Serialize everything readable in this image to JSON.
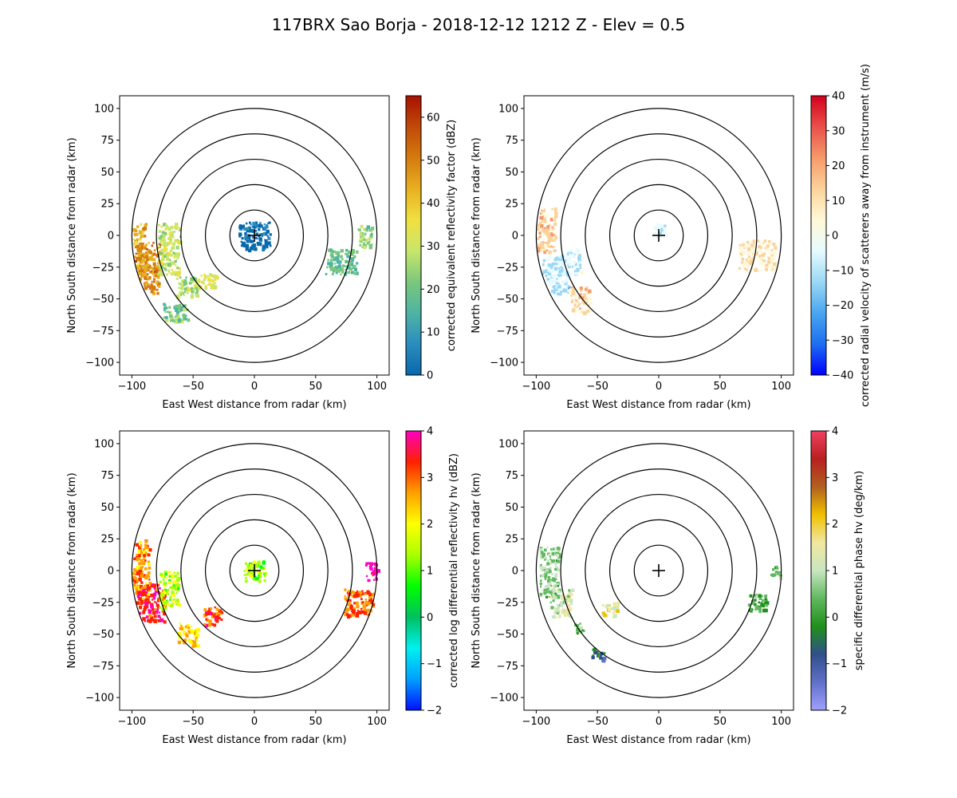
{
  "figure": {
    "title": "117BRX Sao Borja - 2018-12-12 1212 Z -  Elev = 0.5"
  },
  "chart_data": [
    {
      "type": "heatmap",
      "id": "reflectivity",
      "xlabel": "East West distance from radar (km)",
      "ylabel": "North South distance from radar (km)",
      "xlim": [
        -110,
        110
      ],
      "ylim": [
        -110,
        110
      ],
      "x_ticks": [
        -100,
        -50,
        0,
        50,
        100
      ],
      "y_ticks": [
        -100,
        -75,
        -50,
        -25,
        0,
        25,
        50,
        75,
        100
      ],
      "range_rings_km": [
        20,
        40,
        60,
        80,
        100
      ],
      "colorbar": {
        "label": "corrected equivalent reflectivity factor (dBZ)",
        "vmin": 0,
        "vmax": 65,
        "ticks": [
          0,
          10,
          20,
          30,
          40,
          50,
          60
        ],
        "colors": [
          "#0868ac",
          "#2b8cbe",
          "#4eb3a3",
          "#7bc87c",
          "#c8e66a",
          "#f0e040",
          "#e8b020",
          "#d57a10",
          "#c04a08",
          "#a81000"
        ]
      },
      "echo_regions": [
        {
          "x": -98,
          "y": -20,
          "w": 18,
          "h": 60,
          "value": 42
        },
        {
          "x": -88,
          "y": -25,
          "w": 20,
          "h": 40,
          "value": 47
        },
        {
          "x": -70,
          "y": -10,
          "w": 18,
          "h": 40,
          "value": 30
        },
        {
          "x": -55,
          "y": -40,
          "w": 18,
          "h": 16,
          "value": 27
        },
        {
          "x": -40,
          "y": -35,
          "w": 18,
          "h": 12,
          "value": 32
        },
        {
          "x": -65,
          "y": -60,
          "w": 20,
          "h": 14,
          "value": 22
        },
        {
          "x": 70,
          "y": -20,
          "w": 26,
          "h": 20,
          "value": 20
        },
        {
          "x": 90,
          "y": 0,
          "w": 12,
          "h": 18,
          "value": 25
        },
        {
          "x": 0,
          "y": 0,
          "w": 26,
          "h": 22,
          "value": 3
        }
      ]
    },
    {
      "type": "heatmap",
      "id": "velocity",
      "xlabel": "East West distance from radar (km)",
      "ylabel": "North South distance from radar (km)",
      "xlim": [
        -110,
        110
      ],
      "ylim": [
        -110,
        110
      ],
      "x_ticks": [
        -100,
        -50,
        0,
        50,
        100
      ],
      "y_ticks": [
        -100,
        -75,
        -50,
        -25,
        0,
        25,
        50,
        75,
        100
      ],
      "range_rings_km": [
        20,
        40,
        60,
        80,
        100
      ],
      "colorbar": {
        "label": "corrected radial velocity of scatterers away from instrument (m/s)",
        "vmin": -40,
        "vmax": 40,
        "ticks": [
          -40,
          -30,
          -20,
          -10,
          0,
          10,
          20,
          30,
          40
        ],
        "colors": [
          "#0000ff",
          "#1e6ef0",
          "#4aa6f0",
          "#9ad8f5",
          "#e6fbff",
          "#fff8d8",
          "#fbd39a",
          "#f59a6a",
          "#e8504a",
          "#d4001c"
        ]
      },
      "echo_regions": [
        {
          "x": -95,
          "y": 5,
          "w": 20,
          "h": 35,
          "value": 12
        },
        {
          "x": -85,
          "y": -30,
          "w": 22,
          "h": 30,
          "value": -9
        },
        {
          "x": -65,
          "y": -50,
          "w": 18,
          "h": 20,
          "value": 10
        },
        {
          "x": -70,
          "y": -20,
          "w": 14,
          "h": 20,
          "value": -6
        },
        {
          "x": 80,
          "y": -15,
          "w": 30,
          "h": 24,
          "value": 7
        },
        {
          "x": 0,
          "y": 5,
          "w": 10,
          "h": 10,
          "value": -5
        }
      ]
    },
    {
      "type": "heatmap",
      "id": "zdr",
      "xlabel": "East West distance from radar (km)",
      "ylabel": "North South distance from radar (km)",
      "xlim": [
        -110,
        110
      ],
      "ylim": [
        -110,
        110
      ],
      "x_ticks": [
        -100,
        -50,
        0,
        50,
        100
      ],
      "y_ticks": [
        -100,
        -75,
        -50,
        -25,
        0,
        25,
        50,
        75,
        100
      ],
      "range_rings_km": [
        20,
        40,
        60,
        80,
        100
      ],
      "colorbar": {
        "label": "corrected log differential reflectivity hv (dBZ)",
        "vmin": -2,
        "vmax": 4,
        "ticks": [
          -2,
          -1,
          0,
          1,
          2,
          3,
          4
        ],
        "colors": [
          "#0010ff",
          "#00a0ff",
          "#00f0f0",
          "#00c060",
          "#00ff00",
          "#aaff00",
          "#ffff00",
          "#ffa000",
          "#ff2000",
          "#ff00c0"
        ]
      },
      "echo_regions": [
        {
          "x": -95,
          "y": 0,
          "w": 18,
          "h": 50,
          "value": 2.6
        },
        {
          "x": -85,
          "y": -25,
          "w": 22,
          "h": 30,
          "value": 3.2
        },
        {
          "x": -70,
          "y": -15,
          "w": 16,
          "h": 30,
          "value": 1.4
        },
        {
          "x": -55,
          "y": -50,
          "w": 16,
          "h": 18,
          "value": 2.2
        },
        {
          "x": -35,
          "y": -35,
          "w": 16,
          "h": 14,
          "value": 3.0
        },
        {
          "x": 85,
          "y": -25,
          "w": 24,
          "h": 22,
          "value": 2.8
        },
        {
          "x": 95,
          "y": 0,
          "w": 10,
          "h": 14,
          "value": 3.8
        },
        {
          "x": 0,
          "y": 0,
          "w": 18,
          "h": 16,
          "value": 1.2
        }
      ]
    },
    {
      "type": "heatmap",
      "id": "kdp",
      "xlabel": "East West distance from radar (km)",
      "ylabel": "North South distance from radar (km)",
      "xlim": [
        -110,
        110
      ],
      "ylim": [
        -110,
        110
      ],
      "x_ticks": [
        -100,
        -50,
        0,
        50,
        100
      ],
      "y_ticks": [
        -100,
        -75,
        -50,
        -25,
        0,
        25,
        50,
        75,
        100
      ],
      "range_rings_km": [
        20,
        40,
        60,
        80,
        100
      ],
      "colorbar": {
        "label": "specific differential phase hv (deg/km)",
        "vmin": -2,
        "vmax": 4,
        "ticks": [
          -2,
          -1,
          0,
          1,
          2,
          3,
          4
        ],
        "colors": [
          "#a0a0ff",
          "#6070c8",
          "#30508a",
          "#20901a",
          "#60b860",
          "#c8e6c0",
          "#f0e8a0",
          "#f0c000",
          "#b06020",
          "#b82020",
          "#f04060"
        ]
      },
      "echo_regions": [
        {
          "x": -90,
          "y": 0,
          "w": 16,
          "h": 40,
          "value": 0.6
        },
        {
          "x": -80,
          "y": -25,
          "w": 18,
          "h": 24,
          "value": 1.0
        },
        {
          "x": -40,
          "y": -30,
          "w": 14,
          "h": 12,
          "value": 1.4
        },
        {
          "x": -50,
          "y": -65,
          "w": 12,
          "h": 10,
          "value": -0.5
        },
        {
          "x": 80,
          "y": -25,
          "w": 16,
          "h": 14,
          "value": 0.2
        },
        {
          "x": 95,
          "y": 0,
          "w": 8,
          "h": 10,
          "value": 0.4
        },
        {
          "x": -65,
          "y": -45,
          "w": 8,
          "h": 8,
          "value": 0.3
        }
      ]
    }
  ]
}
